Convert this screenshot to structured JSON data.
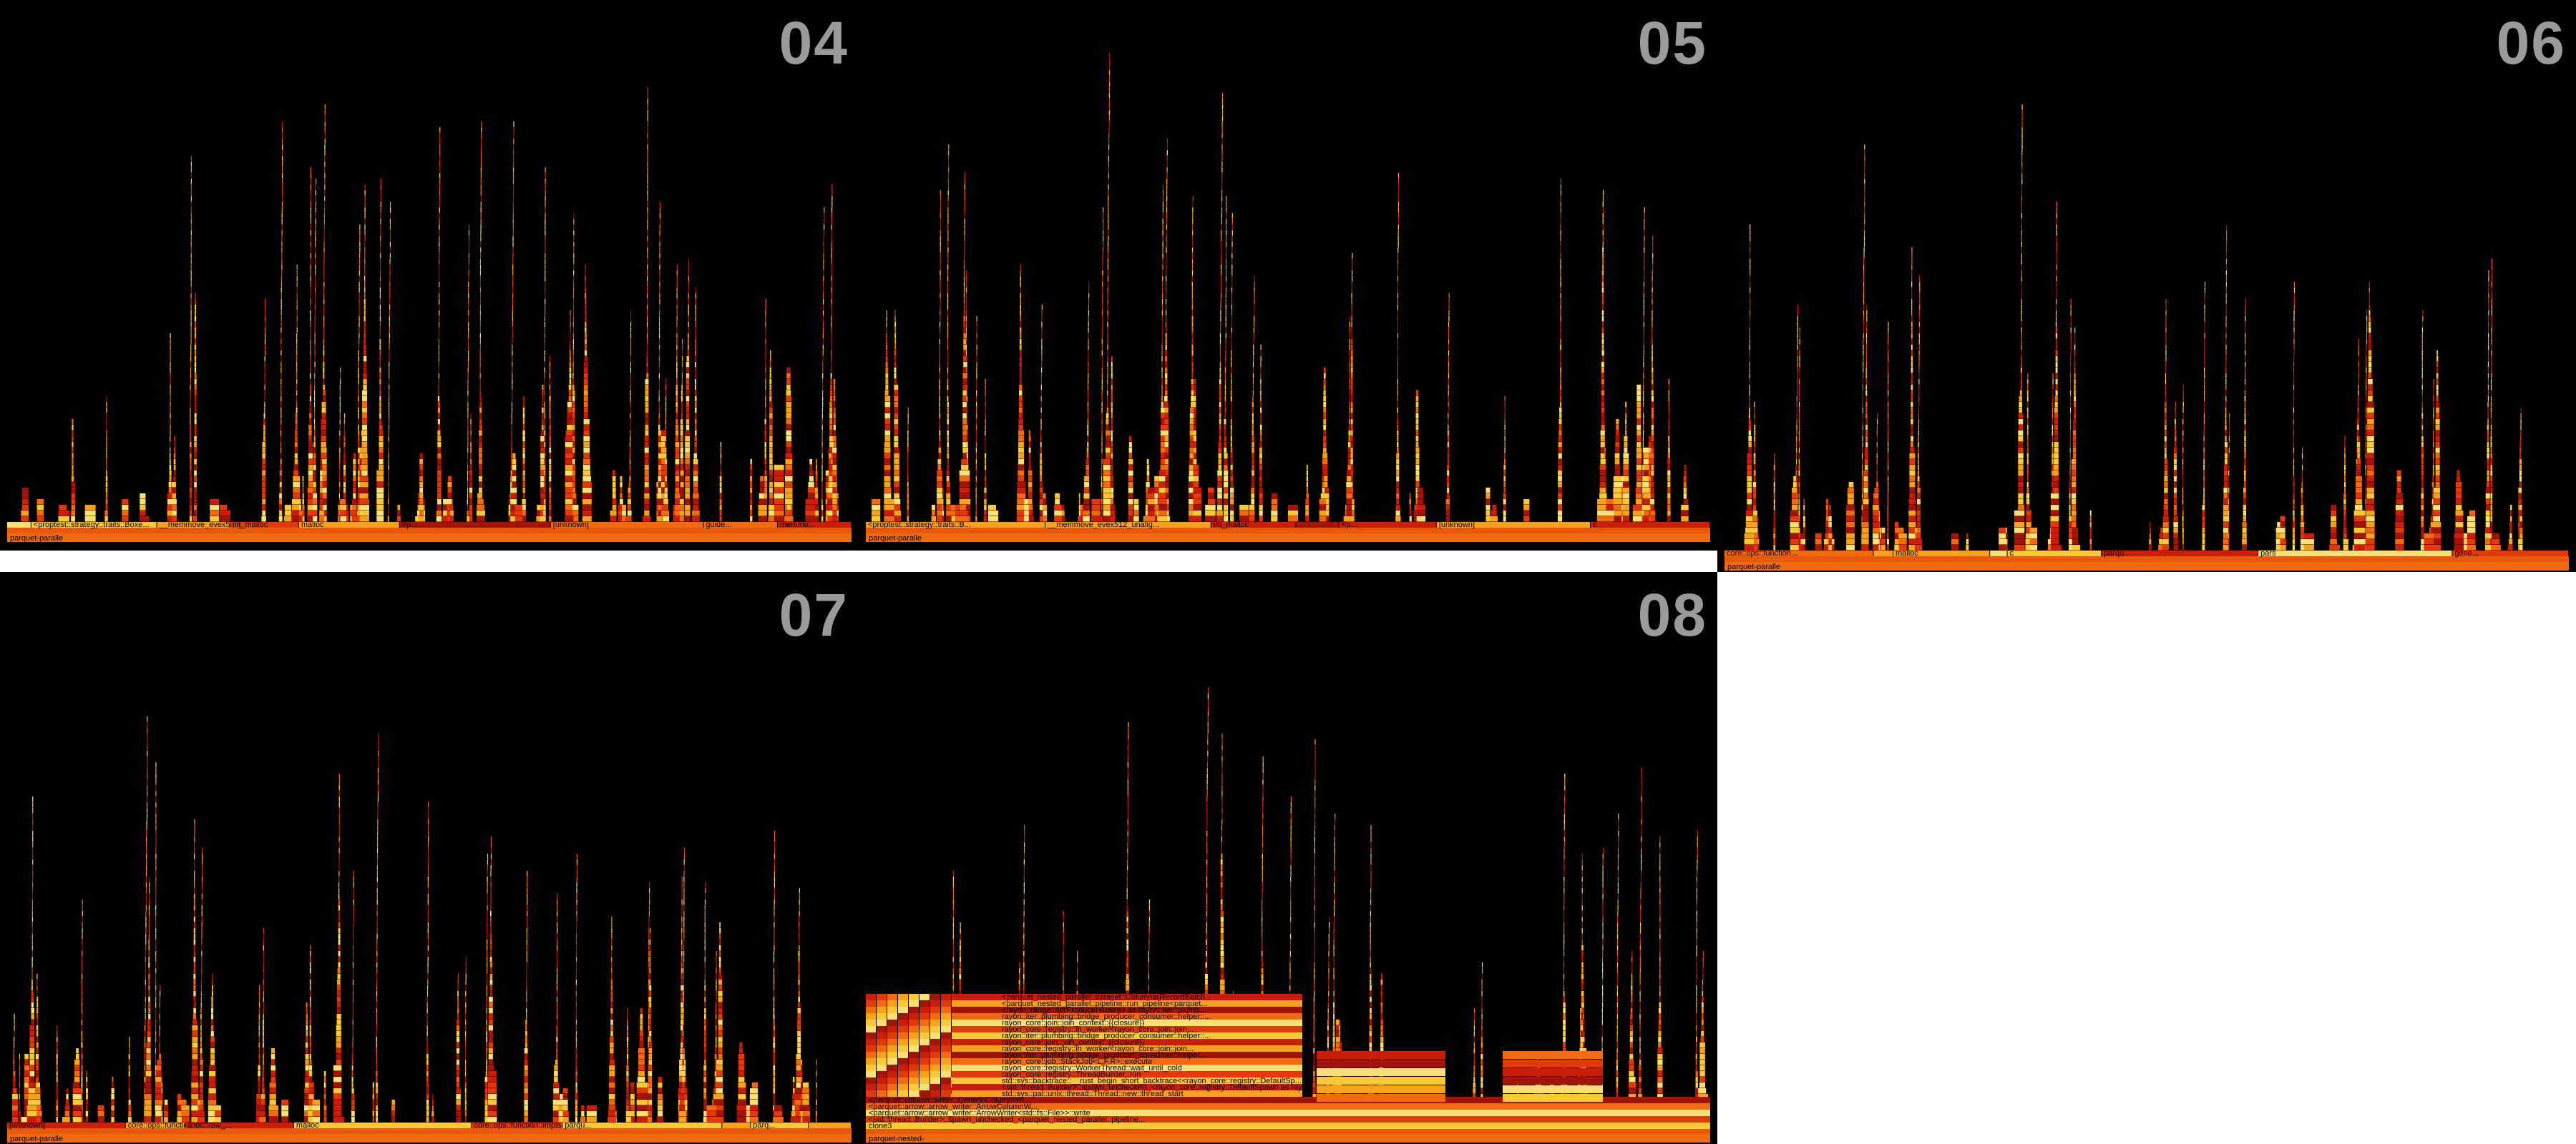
{
  "panels": [
    {
      "label": "04",
      "root": "parquet-paralle",
      "frames": [
        "<proptest::strategy::traits::Boxe...",
        "__memmove_evex512_unali...",
        "int_malloc",
        "malloc",
        "<p...",
        "[unknown]",
        "guide...",
        "memmo...",
        "cor...",
        "al..."
      ],
      "seed": 4
    },
    {
      "label": "05",
      "root": "parquet-paralle",
      "frames": [
        "<proptest::strategy::traits::B...",
        "__memmove_evex512_unalig...",
        "int_malloc",
        "<p...",
        "[unknown]",
        "c",
        "memm...",
        "core...",
        "al..."
      ],
      "seed": 5
    },
    {
      "label": "06",
      "root": "parquet-paralle",
      "frames": [
        "core::ops::function...",
        "malloc",
        "c",
        "parqu...",
        "pars",
        "gene...",
        "xfd4...",
        "exit",
        "xfb_w...",
        "entry",
        "rdd..."
      ],
      "seed": 6
    },
    {
      "label": "07",
      "root": "parquet-paralle",
      "frames": [
        "[unknown]",
        "core::ops::function...",
        "alloc::raw_...",
        "malloc",
        "core::ops::function::impls...",
        "parqu...",
        "parq...",
        "gen...",
        "x64...",
        "exit...",
        "std..."
      ],
      "seed": 7
    },
    {
      "label": "08",
      "root": "parquet-nested-",
      "frames": [
        "<parquet_nested_parallel::dataset::ColumnarRecordBatch...",
        "<parquet_nested_parallel::pipeline::run_pipeline<parquet...",
        "<rayon::range::IterProducer<usize> as rayon::iter::plumb...",
        "rayon::iter::plumbing::bridge_producer_consumer::helper::...",
        "rayon_core::join::join_context::{{closure}}",
        "rayon_core::registry::in_worker<rayon_core::join::join...",
        "rayon::iter::plumbing::bridge_producer_consumer::helper::...",
        "rayon_core::join::join_context::{{closure}}",
        "rayon_core::registry::in_worker<rayon_core::join::join...",
        "rayon::iter::plumbing::bridge_producer_consumer::helper...",
        "rayon_core::job::StackJob<L,F,R>::execute",
        "rayon_core::registry::WorkerThread::wait_until_cold",
        "rayon_core::registry::ThreadBuilder::run",
        "std::sys::backtrace::__rust_begin_short_backtrace<<rayon_core::registry::DefaultSp...",
        "<std::thread::Builder>::spawn_unchecked_<rayon_core::registry::DefaultSpawn as ray...",
        "std::sys::pal::unix::thread::Thread::new::thread_start",
        "<parquet::column::writer::GenericColumnWri...",
        "<parquet::arrow::arrow_writer::ArrowColumnW...",
        "<parquet::arrow::arrow_writer::ArrowWriter<std::fs::File>>::write",
        "<std::thread::Builder>::spawn_unchecked_<parquet_nested_parallel::pipeline...",
        "clone3"
      ],
      "seed": 8
    }
  ],
  "colors": {
    "background": "#000000",
    "page": "#ffffff",
    "label": "#9a9a9a",
    "flame": [
      "#c81e0a",
      "#e0390c",
      "#f06a10",
      "#f5a21f",
      "#f9c93a",
      "#fbe07a",
      "#a0140a"
    ]
  }
}
